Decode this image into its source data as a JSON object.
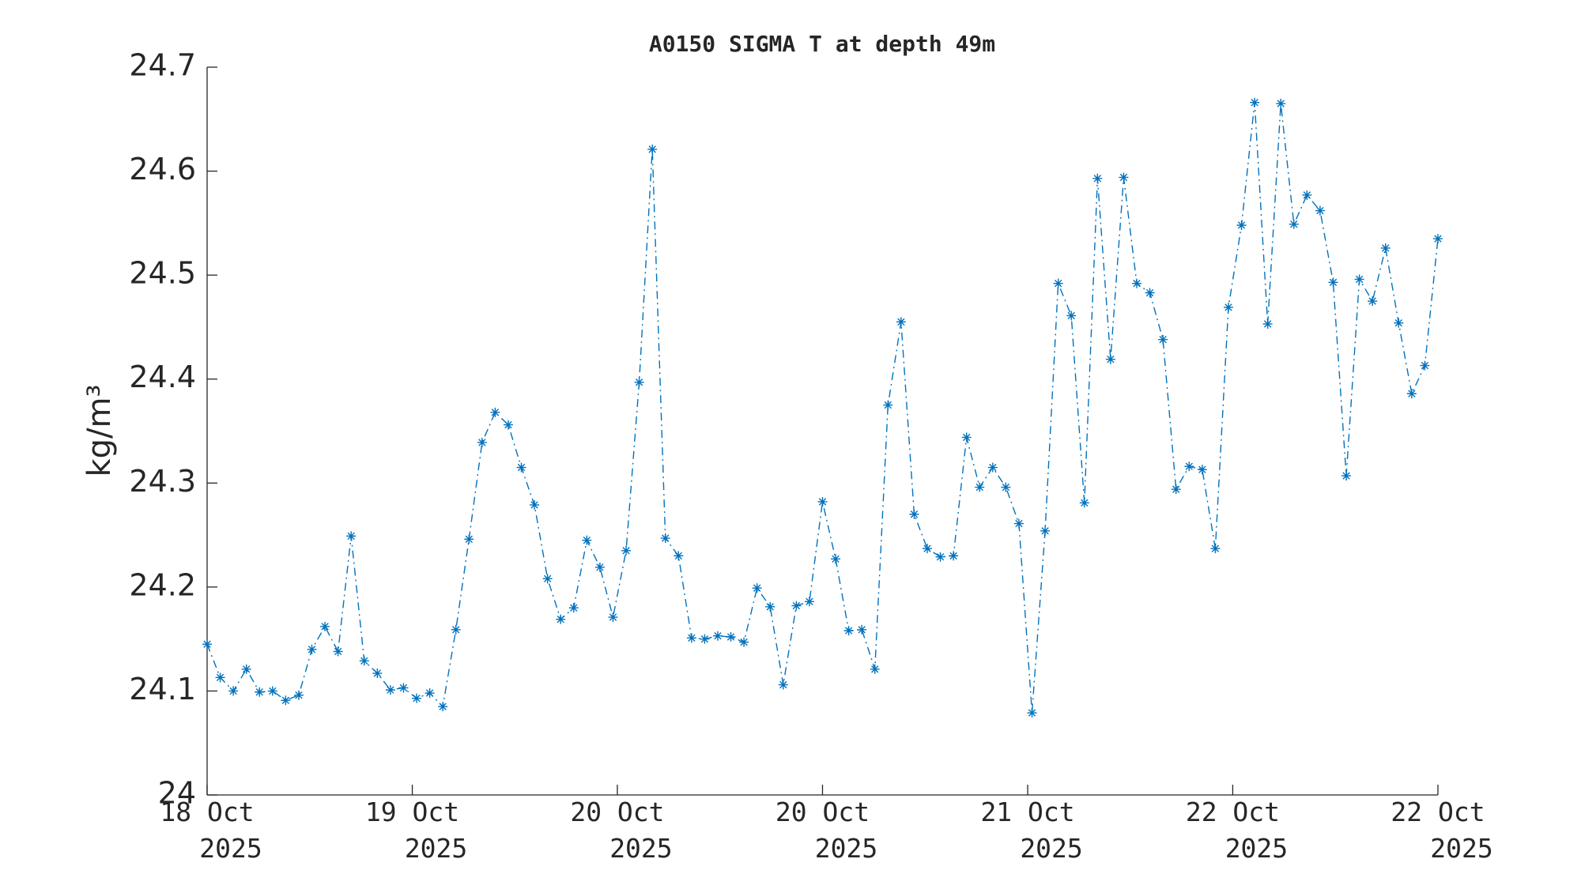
{
  "chart_data": {
    "type": "line",
    "title": "A0150 SIGMA T at depth 49m",
    "y_label": "kg/m³",
    "x": [
      0,
      1,
      2,
      3,
      4,
      5,
      6,
      7,
      8,
      9,
      10,
      11,
      12,
      13,
      14,
      15,
      16,
      17,
      18,
      19,
      20,
      21,
      22,
      23,
      24,
      25,
      26,
      27,
      28,
      29,
      30,
      31,
      32,
      33,
      34,
      35,
      36,
      37,
      38,
      39,
      40,
      41,
      42,
      43,
      44,
      45,
      46,
      47,
      48,
      49,
      50,
      51,
      52,
      53,
      54,
      55,
      56,
      57,
      58,
      59,
      60,
      61,
      62,
      63,
      64,
      65,
      66,
      67,
      68,
      69,
      70,
      71,
      72,
      73,
      74,
      75,
      76,
      77,
      78,
      79,
      80,
      81,
      82,
      83,
      84,
      85,
      86,
      87,
      88,
      89,
      90,
      91,
      92,
      93,
      94
    ],
    "series": [
      {
        "color": "#0072bd",
        "line_style": "dash-dot",
        "marker": "asterisk",
        "values": [
          24.145,
          24.113,
          24.1,
          24.121,
          24.099,
          24.1,
          24.091,
          24.096,
          24.14,
          24.162,
          24.138,
          24.249,
          24.129,
          24.117,
          24.101,
          24.103,
          24.093,
          24.098,
          24.085,
          24.159,
          24.246,
          24.339,
          24.368,
          24.356,
          24.315,
          24.279,
          24.208,
          24.169,
          24.18,
          24.245,
          24.219,
          24.171,
          24.235,
          24.397,
          24.621,
          24.247,
          24.23,
          24.151,
          24.15,
          24.153,
          24.152,
          24.147,
          24.199,
          24.181,
          24.106,
          24.182,
          24.186,
          24.282,
          24.227,
          24.158,
          24.159,
          24.121,
          24.375,
          24.455,
          24.27,
          24.237,
          24.229,
          24.23,
          24.344,
          24.296,
          24.315,
          24.296,
          24.261,
          24.079,
          24.254,
          24.492,
          24.461,
          24.281,
          24.593,
          24.419,
          24.594,
          24.492,
          24.483,
          24.438,
          24.294,
          24.316,
          24.313,
          24.237,
          24.469,
          24.548,
          24.666,
          24.453,
          24.665,
          24.549,
          24.577,
          24.562,
          24.493,
          24.307,
          24.496,
          24.475,
          24.526,
          24.454,
          24.386,
          24.413,
          24.535
        ]
      }
    ],
    "xlim": [
      0,
      94
    ],
    "xticks": [
      {
        "value": 0,
        "label": "18 Oct 2025"
      },
      {
        "value": 15.67,
        "label": "19 Oct 2025"
      },
      {
        "value": 31.33,
        "label": "20 Oct 2025"
      },
      {
        "value": 47,
        "label": "20 Oct 2025"
      },
      {
        "value": 62.67,
        "label": "21 Oct 2025"
      },
      {
        "value": 78.33,
        "label": "22 Oct 2025"
      },
      {
        "value": 94,
        "label": "22 Oct 2025"
      }
    ],
    "ylim": [
      24,
      24.7
    ],
    "yticks": [
      24,
      {
        "value": 24.1,
        "label": "24.1"
      },
      {
        "value": 24.2,
        "label": "24.2"
      },
      {
        "value": 24.3,
        "label": "24.3"
      },
      {
        "value": 24.4,
        "label": "24.4"
      },
      {
        "value": 24.5,
        "label": "24.5"
      },
      {
        "value": 24.6,
        "label": "24.6"
      },
      {
        "value": 24.7,
        "label": "24.7"
      }
    ],
    "grid": false
  }
}
